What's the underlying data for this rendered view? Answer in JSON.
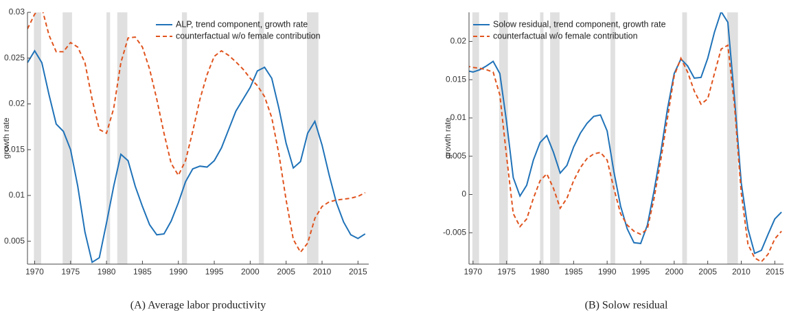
{
  "chart_data": [
    {
      "type": "line",
      "caption": "(A) Average labor productivity",
      "ylabel": "growth rate",
      "legend": "upper right",
      "x": [
        1969,
        1970,
        1971,
        1972,
        1973,
        1974,
        1975,
        1976,
        1977,
        1978,
        1979,
        1980,
        1981,
        1982,
        1983,
        1984,
        1985,
        1986,
        1987,
        1988,
        1989,
        1990,
        1991,
        1992,
        1993,
        1994,
        1995,
        1996,
        1997,
        1998,
        1999,
        2000,
        2001,
        2002,
        2003,
        2004,
        2005,
        2006,
        2007,
        2008,
        2009,
        2010,
        2011,
        2012,
        2013,
        2014,
        2015,
        2016
      ],
      "xlim": [
        1969,
        2016.5
      ],
      "xticks": [
        1970,
        1975,
        1980,
        1985,
        1990,
        1995,
        2000,
        2005,
        2010,
        2015
      ],
      "ylim": [
        0.0025,
        0.03
      ],
      "yticks": [
        0.005,
        0.01,
        0.015,
        0.02,
        0.025,
        0.03
      ],
      "shaded_regions": [
        [
          1969.9,
          1970.9
        ],
        [
          1973.9,
          1975.2
        ],
        [
          1980,
          1980.5
        ],
        [
          1981.5,
          1982.9
        ],
        [
          1990.5,
          1991.2
        ],
        [
          2001.2,
          2001.9
        ],
        [
          2007.9,
          2009.5
        ]
      ],
      "shade_color": "#e0e0e0",
      "series": [
        {
          "name": "ALP, trend component, growth rate",
          "color": "#1f72b8",
          "dash": false,
          "values": [
            0.0245,
            0.0258,
            0.0245,
            0.021,
            0.0178,
            0.017,
            0.015,
            0.011,
            0.006,
            0.0027,
            0.0032,
            0.007,
            0.011,
            0.0145,
            0.0138,
            0.011,
            0.0088,
            0.0068,
            0.0057,
            0.0058,
            0.0072,
            0.0092,
            0.0115,
            0.0129,
            0.0132,
            0.0131,
            0.0138,
            0.0152,
            0.0172,
            0.0192,
            0.0205,
            0.0218,
            0.0236,
            0.024,
            0.0228,
            0.0195,
            0.0157,
            0.013,
            0.0137,
            0.0168,
            0.0181,
            0.0155,
            0.0122,
            0.0092,
            0.0071,
            0.0057,
            0.0053,
            0.0058
          ]
        },
        {
          "name": "counterfactual w/o female contribution",
          "color": "#e0531d",
          "dash": true,
          "values": [
            0.0282,
            0.0298,
            0.0305,
            0.0275,
            0.0257,
            0.0257,
            0.0267,
            0.0262,
            0.0245,
            0.0205,
            0.0172,
            0.0168,
            0.0195,
            0.0245,
            0.0272,
            0.0273,
            0.0262,
            0.0238,
            0.0205,
            0.0168,
            0.0135,
            0.0122,
            0.0138,
            0.017,
            0.0205,
            0.0232,
            0.0252,
            0.0258,
            0.0253,
            0.0246,
            0.0238,
            0.0228,
            0.022,
            0.0208,
            0.0185,
            0.0145,
            0.0095,
            0.0052,
            0.0038,
            0.0048,
            0.0075,
            0.0088,
            0.0093,
            0.0095,
            0.0096,
            0.0097,
            0.0099,
            0.0103
          ]
        }
      ]
    },
    {
      "type": "line",
      "caption": "(B) Solow residual",
      "ylabel": "growth rate",
      "legend": "upper left",
      "x": [
        1969,
        1970,
        1971,
        1972,
        1973,
        1974,
        1975,
        1976,
        1977,
        1978,
        1979,
        1980,
        1981,
        1982,
        1983,
        1984,
        1985,
        1986,
        1987,
        1988,
        1989,
        1990,
        1991,
        1992,
        1993,
        1994,
        1995,
        1996,
        1997,
        1998,
        1999,
        2000,
        2001,
        2002,
        2003,
        2004,
        2005,
        2006,
        2007,
        2008,
        2009,
        2010,
        2011,
        2012,
        2013,
        2014,
        2015,
        2016
      ],
      "xlim": [
        1969.4,
        2016.3
      ],
      "xticks": [
        1970,
        1975,
        1980,
        1985,
        1990,
        1995,
        2000,
        2005,
        2010,
        2015
      ],
      "ylim": [
        -0.0091,
        0.0238
      ],
      "yticks": [
        -0.005,
        0,
        0.005,
        0.01,
        0.015,
        0.02
      ],
      "shaded_regions": [
        [
          1969.9,
          1970.9
        ],
        [
          1973.9,
          1975.2
        ],
        [
          1980,
          1980.5
        ],
        [
          1981.5,
          1982.9
        ],
        [
          1990.5,
          1991.2
        ],
        [
          2001.2,
          2001.9
        ],
        [
          2007.9,
          2009.5
        ]
      ],
      "shade_color": "#e0e0e0",
      "series": [
        {
          "name": "Solow residual, trend component, growth rate",
          "color": "#1f72b8",
          "dash": false,
          "values": [
            0.0162,
            0.016,
            0.0163,
            0.0168,
            0.0174,
            0.0158,
            0.0095,
            0.0022,
            -0.0002,
            0.0012,
            0.0045,
            0.0068,
            0.0077,
            0.0055,
            0.0028,
            0.0038,
            0.0062,
            0.008,
            0.0093,
            0.0102,
            0.0104,
            0.0083,
            0.003,
            -0.0015,
            -0.0045,
            -0.0063,
            -0.0064,
            -0.004,
            0.0005,
            0.0055,
            0.0112,
            0.0158,
            0.0177,
            0.0168,
            0.0152,
            0.0153,
            0.0178,
            0.0212,
            0.0239,
            0.0225,
            0.0125,
            0.0015,
            -0.0045,
            -0.0077,
            -0.0073,
            -0.0052,
            -0.0032,
            -0.0023
          ]
        },
        {
          "name": "counterfactual w/o female contribution",
          "color": "#e0531d",
          "dash": true,
          "values": [
            0.0168,
            0.0166,
            0.0165,
            0.0163,
            0.016,
            0.013,
            0.005,
            -0.0025,
            -0.0042,
            -0.0032,
            -0.0005,
            0.0018,
            0.0027,
            0.0008,
            -0.0018,
            -0.0005,
            0.0018,
            0.0035,
            0.0047,
            0.0053,
            0.0055,
            0.0045,
            0.0008,
            -0.0025,
            -0.004,
            -0.0048,
            -0.0052,
            -0.0045,
            -0.0005,
            0.0045,
            0.01,
            0.0155,
            0.0178,
            0.016,
            0.0135,
            0.0118,
            0.0125,
            0.0158,
            0.019,
            0.0195,
            0.0115,
            0.0002,
            -0.0065,
            -0.0083,
            -0.0088,
            -0.0078,
            -0.0058,
            -0.0048
          ]
        }
      ]
    }
  ]
}
